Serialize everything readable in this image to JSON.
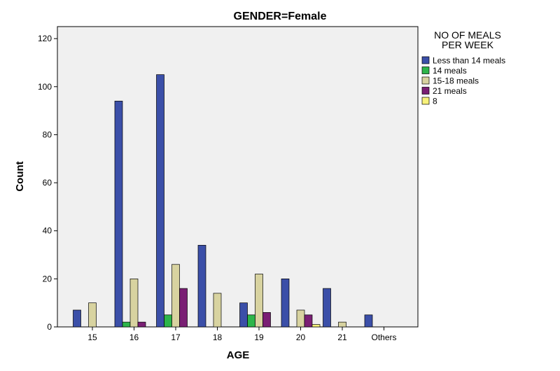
{
  "chart_data": {
    "type": "bar",
    "title": "GENDER=Female",
    "xlabel": "AGE",
    "ylabel": "Count",
    "ylim": [
      0,
      125
    ],
    "yticks": [
      0,
      20,
      40,
      60,
      80,
      100,
      120
    ],
    "categories": [
      "15",
      "16",
      "17",
      "18",
      "19",
      "20",
      "21",
      "Others"
    ],
    "legend": {
      "title_lines": [
        "NO OF MEALS",
        "PER WEEK"
      ],
      "position": "right"
    },
    "grid": false,
    "series": [
      {
        "name": "Less than 14 meals",
        "color": "#3b4fa8",
        "values": [
          7,
          94,
          105,
          34,
          10,
          20,
          16,
          5
        ]
      },
      {
        "name": "14 meals",
        "color": "#2db54a",
        "values": [
          0,
          2,
          5,
          0,
          5,
          0,
          0,
          0
        ]
      },
      {
        "name": "15-18 meals",
        "color": "#d8d3a0",
        "values": [
          10,
          20,
          26,
          14,
          22,
          7,
          2,
          0
        ]
      },
      {
        "name": "21 meals",
        "color": "#7a1f74",
        "values": [
          0,
          2,
          16,
          0,
          6,
          5,
          0,
          0
        ]
      },
      {
        "name": "8",
        "color": "#f8f27a",
        "values": [
          0,
          0,
          0,
          0,
          0,
          1,
          0,
          0
        ]
      }
    ],
    "plot_background": "#f0f0f0"
  }
}
